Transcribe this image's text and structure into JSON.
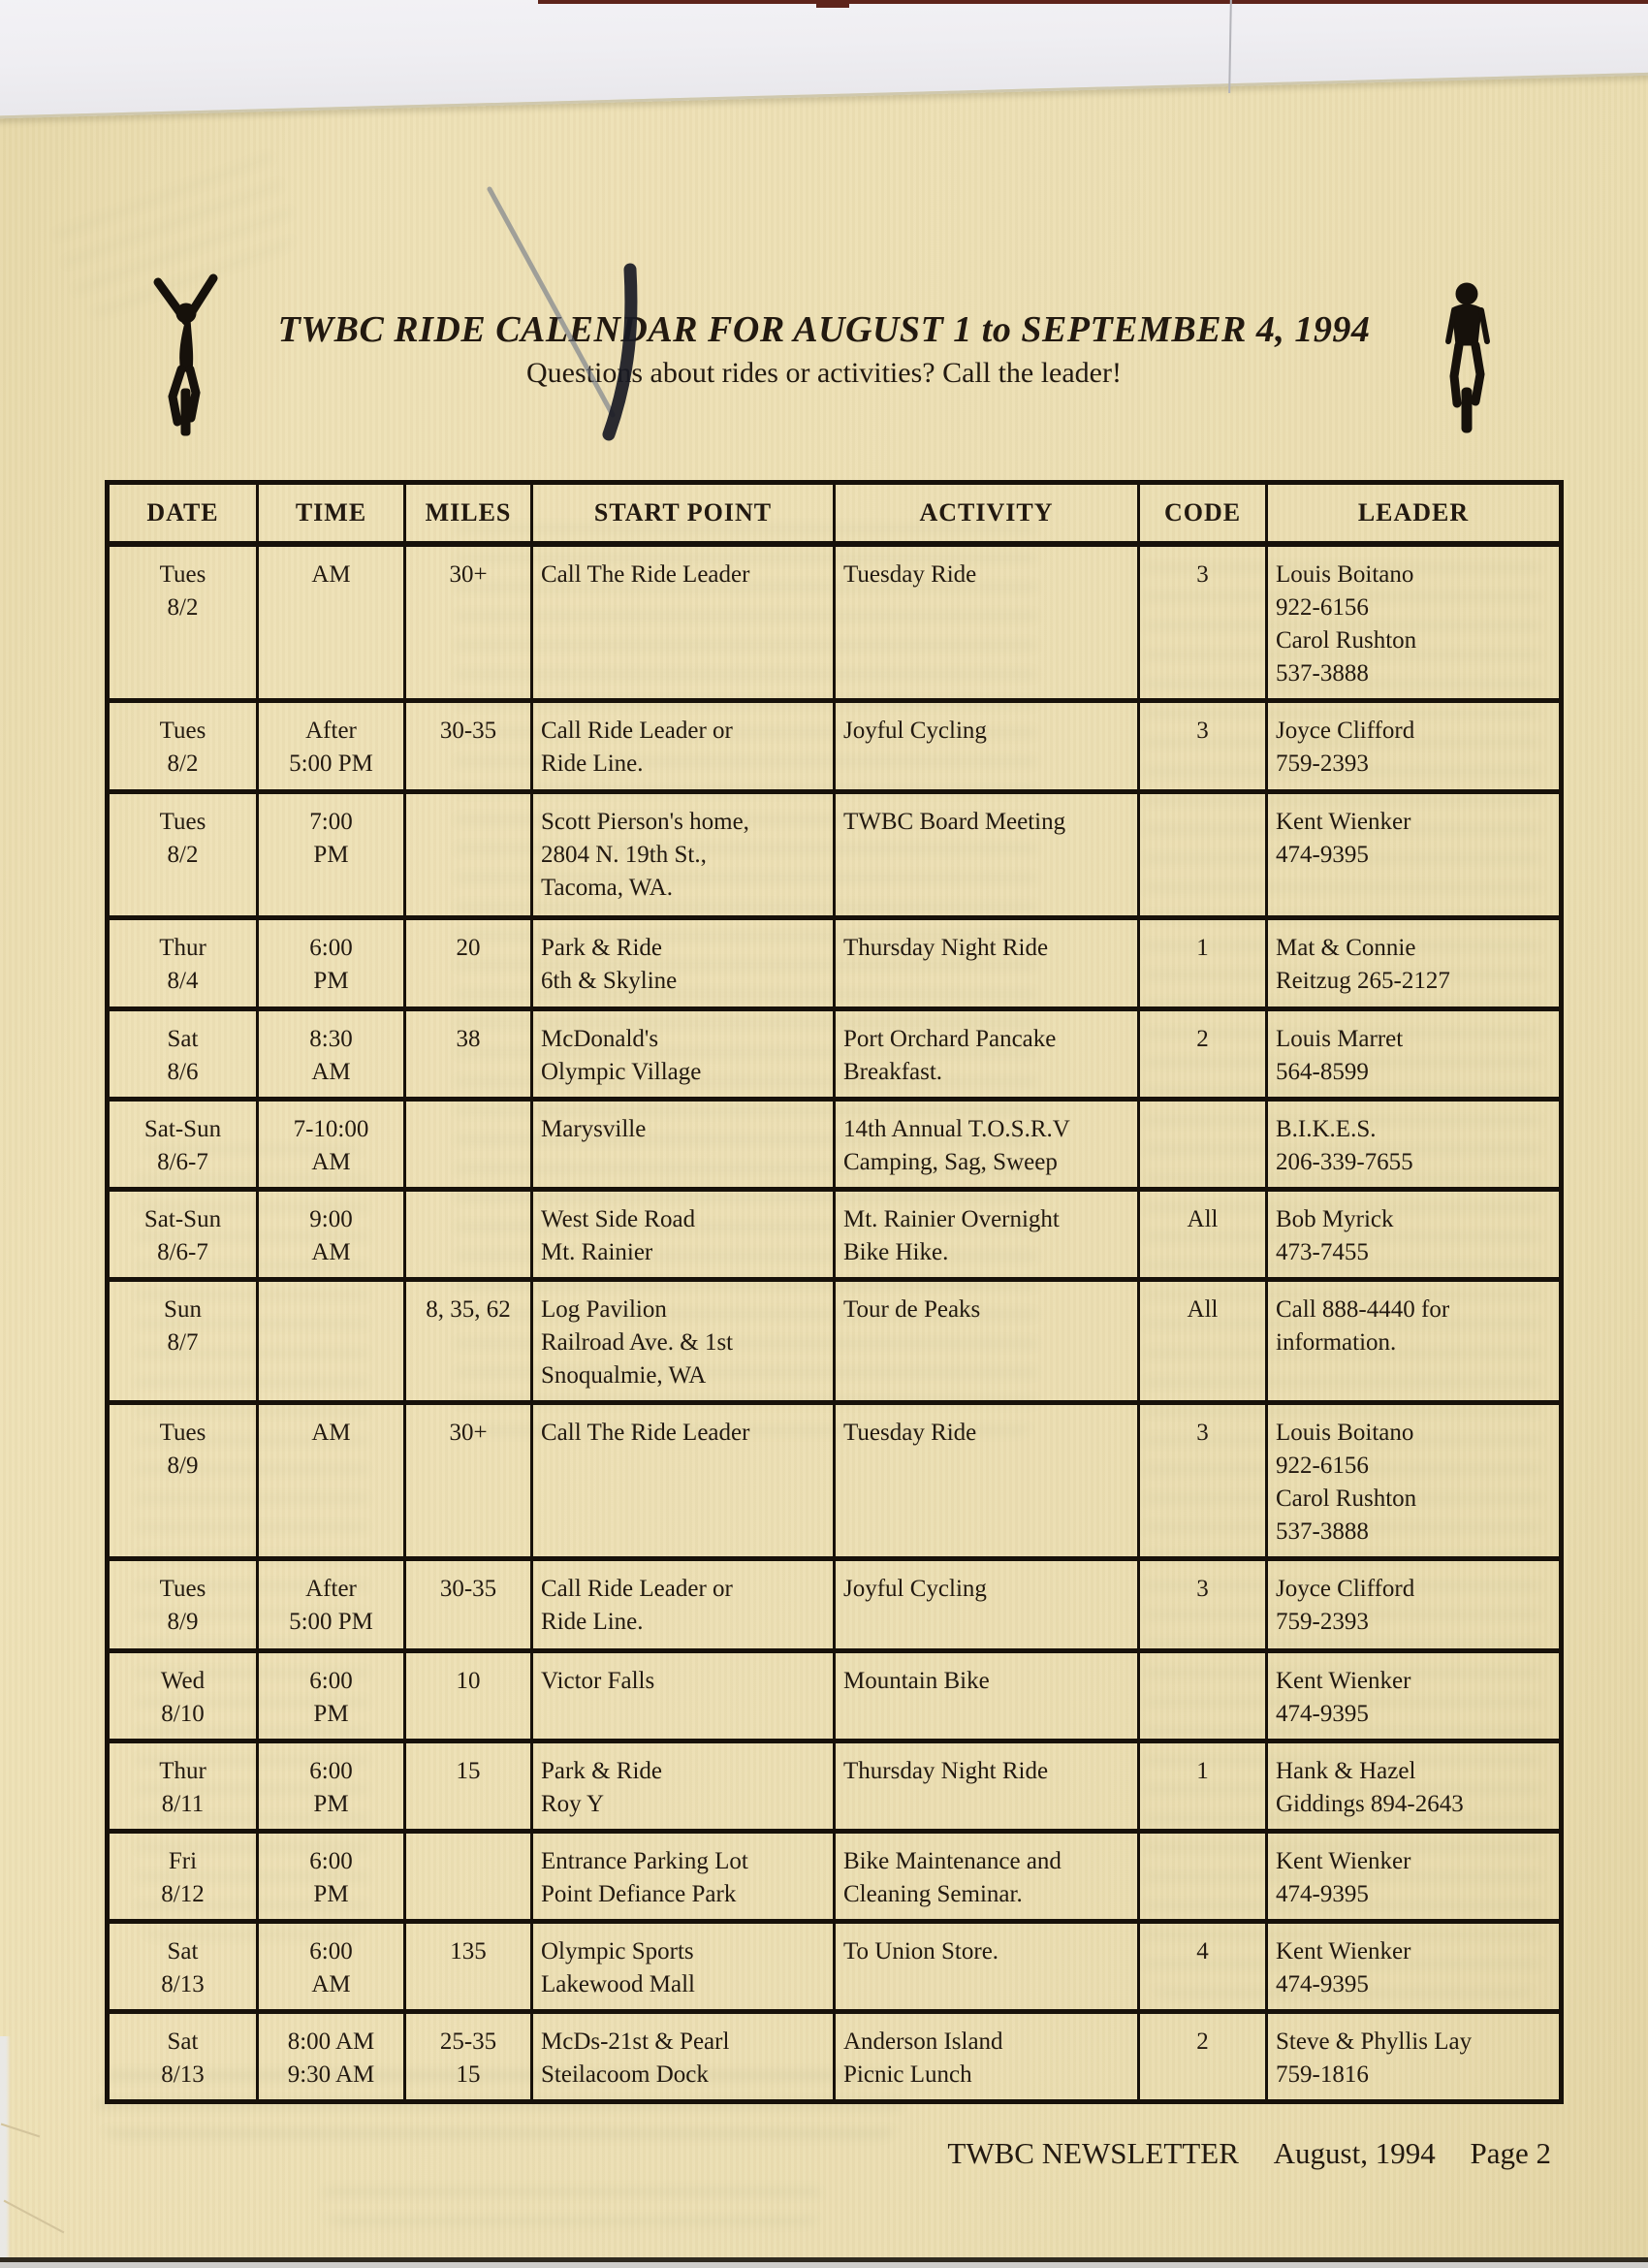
{
  "page": {
    "title": "TWBC RIDE CALENDAR FOR AUGUST 1 to SEPTEMBER 4, 1994",
    "subtitle": "Questions about rides or activities? Call the leader!"
  },
  "footer": {
    "newsletter": "TWBC NEWSLETTER",
    "date": "August, 1994",
    "page": "Page 2"
  },
  "icons": {
    "left": "victory-cyclist-icon",
    "right": "cyclist-front-icon"
  },
  "colors": {
    "paper": "#ecdfb3",
    "ink": "#221910",
    "table_border": "#17110a",
    "scan_strip": "#f4f3f6",
    "pen_mark": "#1a1b24",
    "top_sliver_red": "#5e241b"
  },
  "table": {
    "columns": [
      {
        "key": "date",
        "label": "DATE"
      },
      {
        "key": "time",
        "label": "TIME"
      },
      {
        "key": "miles",
        "label": "MILES"
      },
      {
        "key": "start",
        "label": "START POINT"
      },
      {
        "key": "activity",
        "label": "ACTIVITY"
      },
      {
        "key": "code",
        "label": "CODE"
      },
      {
        "key": "leader",
        "label": "LEADER"
      }
    ],
    "rows": [
      {
        "cells": [
          [
            "Tues",
            "8/2"
          ],
          [
            "AM"
          ],
          [
            "30+"
          ],
          [
            "Call The Ride Leader"
          ],
          [
            "Tuesday Ride"
          ],
          [
            "3"
          ],
          [
            "Louis Boitano",
            "922-6156",
            "Carol Rushton",
            "537-3888"
          ]
        ]
      },
      {
        "cells": [
          [
            "Tues",
            "8/2"
          ],
          [
            "After",
            "5:00 PM"
          ],
          [
            "30-35"
          ],
          [
            "Call Ride Leader or",
            "Ride Line."
          ],
          [
            "Joyful Cycling"
          ],
          [
            "3"
          ],
          [
            "Joyce Clifford",
            "759-2393"
          ]
        ]
      },
      {
        "cells": [
          [
            "Tues",
            "8/2"
          ],
          [
            "7:00",
            "PM"
          ],
          [],
          [
            "Scott Pierson's home,",
            "2804 N. 19th St.,",
            "Tacoma, WA."
          ],
          [
            "TWBC Board Meeting"
          ],
          [],
          [
            "Kent Wienker",
            "474-9395"
          ]
        ]
      },
      {
        "cells": [
          [
            "Thur",
            "8/4"
          ],
          [
            "6:00",
            "PM"
          ],
          [
            "20"
          ],
          [
            "Park & Ride",
            "6th & Skyline"
          ],
          [
            "Thursday Night Ride"
          ],
          [
            "1"
          ],
          [
            "Mat & Connie",
            "Reitzug 265-2127"
          ]
        ]
      },
      {
        "cells": [
          [
            "Sat",
            "8/6"
          ],
          [
            "8:30",
            "AM"
          ],
          [
            "38"
          ],
          [
            "McDonald's",
            "Olympic Village"
          ],
          [
            "Port Orchard Pancake",
            "Breakfast."
          ],
          [
            "2"
          ],
          [
            "Louis Marret",
            "564-8599"
          ]
        ]
      },
      {
        "cells": [
          [
            "Sat-Sun",
            "8/6-7"
          ],
          [
            "7-10:00",
            "AM"
          ],
          [],
          [
            "Marysville"
          ],
          [
            "14th Annual T.O.S.R.V",
            "Camping, Sag, Sweep"
          ],
          [],
          [
            "B.I.K.E.S.",
            "206-339-7655"
          ]
        ]
      },
      {
        "cells": [
          [
            "Sat-Sun",
            "8/6-7"
          ],
          [
            "9:00",
            "AM"
          ],
          [],
          [
            "West Side Road",
            "Mt. Rainier"
          ],
          [
            "Mt. Rainier Overnight",
            "Bike Hike."
          ],
          [
            "All"
          ],
          [
            "Bob Myrick",
            "473-7455"
          ]
        ]
      },
      {
        "cells": [
          [
            "Sun",
            "8/7"
          ],
          [],
          [
            "8, 35, 62"
          ],
          [
            "Log Pavilion",
            "Railroad Ave. & 1st",
            "Snoqualmie, WA"
          ],
          [
            "Tour de Peaks"
          ],
          [
            "All"
          ],
          [
            "Call 888-4440 for",
            "information."
          ]
        ]
      },
      {
        "cells": [
          [
            "Tues",
            "8/9"
          ],
          [
            "AM"
          ],
          [
            "30+"
          ],
          [
            "Call The Ride Leader"
          ],
          [
            "Tuesday Ride"
          ],
          [
            "3"
          ],
          [
            "Louis Boitano",
            "922-6156",
            "Carol Rushton",
            "537-3888"
          ]
        ]
      },
      {
        "cells": [
          [
            "Tues",
            "8/9"
          ],
          [
            "After",
            "5:00 PM"
          ],
          [
            "30-35"
          ],
          [
            "Call Ride Leader or",
            "Ride Line."
          ],
          [
            "Joyful Cycling"
          ],
          [
            "3"
          ],
          [
            "Joyce Clifford",
            "759-2393"
          ]
        ]
      },
      {
        "cells": [
          [
            "Wed",
            "8/10"
          ],
          [
            "6:00",
            "PM"
          ],
          [
            "10"
          ],
          [
            "Victor Falls"
          ],
          [
            "Mountain Bike"
          ],
          [],
          [
            "Kent Wienker",
            "474-9395"
          ]
        ]
      },
      {
        "cells": [
          [
            "Thur",
            "8/11"
          ],
          [
            "6:00",
            "PM"
          ],
          [
            "15"
          ],
          [
            "Park & Ride",
            "Roy Y"
          ],
          [
            "Thursday Night Ride"
          ],
          [
            "1"
          ],
          [
            "Hank & Hazel",
            "Giddings 894-2643"
          ]
        ]
      },
      {
        "cells": [
          [
            "Fri",
            "8/12"
          ],
          [
            "6:00",
            "PM"
          ],
          [],
          [
            "Entrance Parking Lot",
            "Point Defiance Park"
          ],
          [
            "Bike Maintenance and",
            "Cleaning Seminar."
          ],
          [],
          [
            "Kent Wienker",
            "474-9395"
          ]
        ]
      },
      {
        "cells": [
          [
            "Sat",
            "8/13"
          ],
          [
            "6:00",
            "AM"
          ],
          [
            "135"
          ],
          [
            "Olympic Sports",
            "Lakewood Mall"
          ],
          [
            "To Union Store."
          ],
          [
            "4"
          ],
          [
            "Kent Wienker",
            "474-9395"
          ]
        ]
      },
      {
        "cells": [
          [
            "Sat",
            "8/13"
          ],
          [
            "8:00 AM",
            "9:30 AM"
          ],
          [
            "25-35",
            "15"
          ],
          [
            "McDs-21st & Pearl",
            "Steilacoom Dock"
          ],
          [
            "Anderson Island",
            "Picnic Lunch"
          ],
          [
            "2"
          ],
          [
            "Steve & Phyllis Lay",
            "759-1816"
          ]
        ]
      }
    ]
  }
}
